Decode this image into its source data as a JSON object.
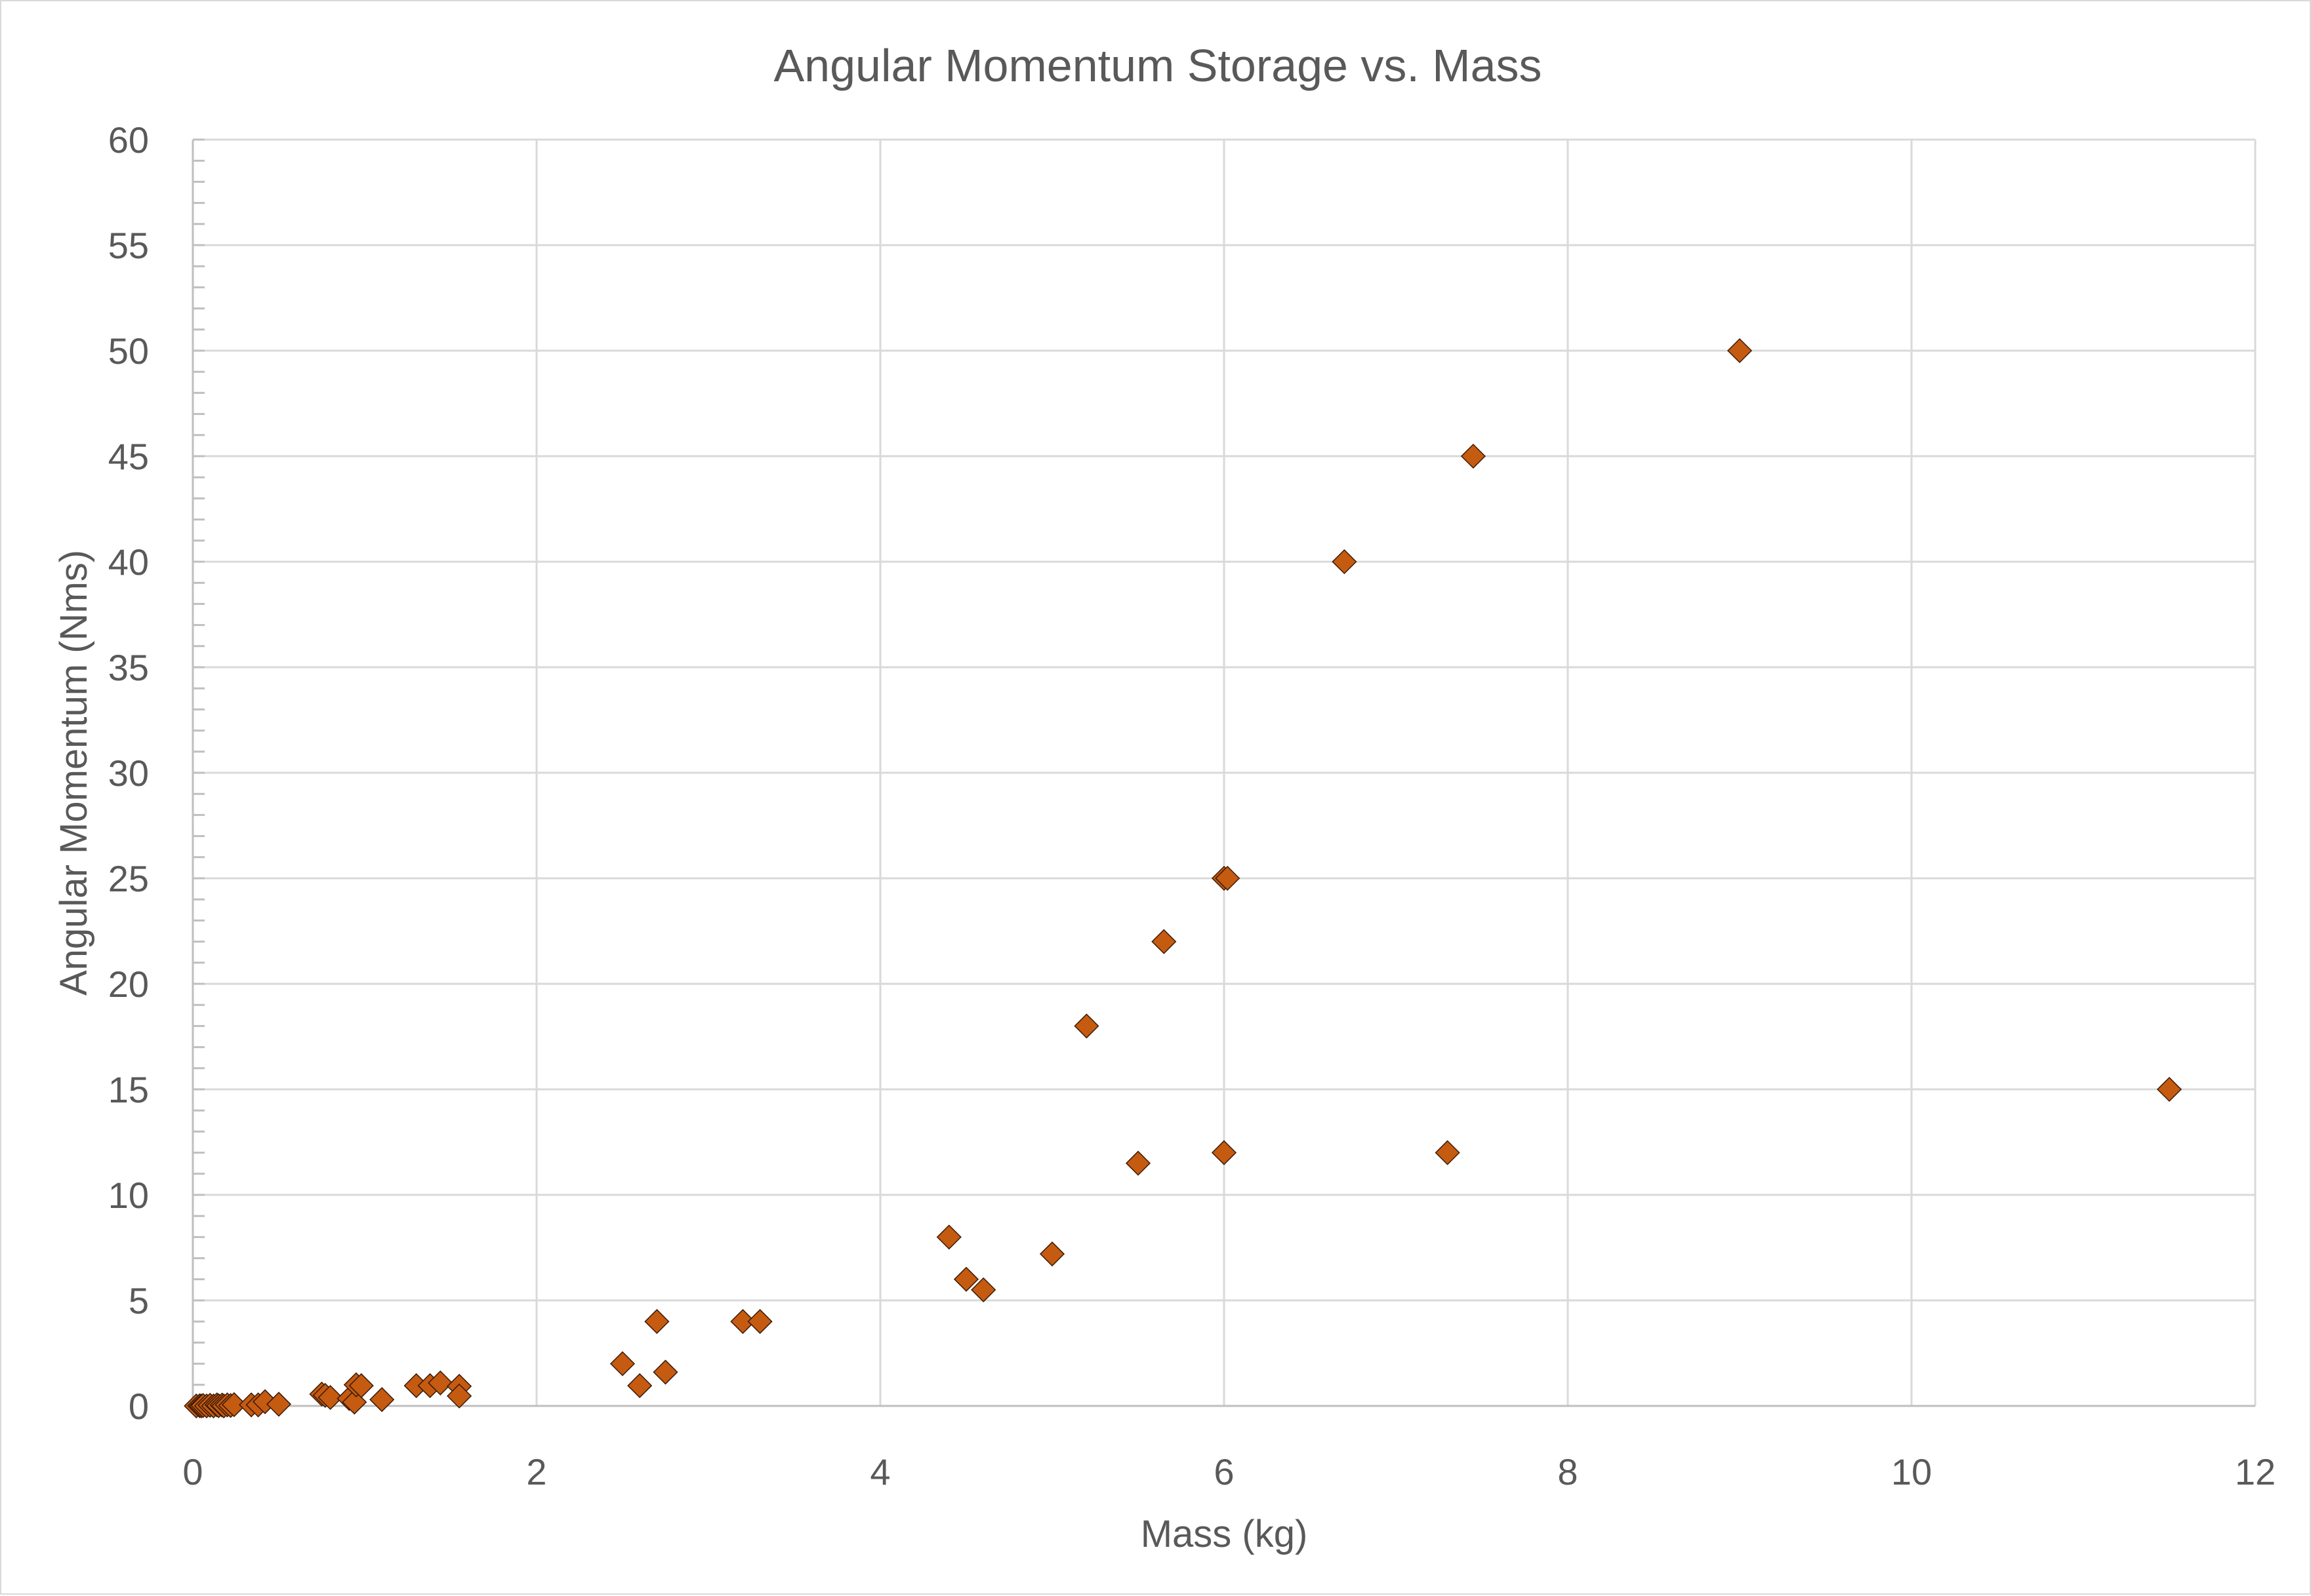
{
  "chart_data": {
    "type": "scatter",
    "title": "Angular Momentum Storage vs. Mass",
    "xlabel": "Mass (kg)",
    "ylabel": "Angular Momentum (Nms)",
    "xlim": [
      0,
      12
    ],
    "ylim": [
      0,
      60
    ],
    "x_ticks": [
      0,
      2,
      4,
      6,
      8,
      10,
      12
    ],
    "y_ticks": [
      0,
      5,
      10,
      15,
      20,
      25,
      30,
      35,
      40,
      45,
      50,
      55,
      60
    ],
    "y_minor_step": 1,
    "grid": true,
    "legend": null,
    "marker": "diamond",
    "marker_color": "#C55A11",
    "marker_edge_color": "#3A1A05",
    "series": [
      {
        "name": "Angular Momentum",
        "points": [
          [
            0.02,
            0.0
          ],
          [
            0.04,
            0.01
          ],
          [
            0.05,
            0.0
          ],
          [
            0.06,
            0.02
          ],
          [
            0.08,
            0.0
          ],
          [
            0.1,
            0.03
          ],
          [
            0.12,
            0.0
          ],
          [
            0.14,
            0.05
          ],
          [
            0.15,
            0.01
          ],
          [
            0.17,
            0.04
          ],
          [
            0.18,
            0.0
          ],
          [
            0.2,
            0.05
          ],
          [
            0.22,
            0.02
          ],
          [
            0.24,
            0.06
          ],
          [
            0.34,
            0.05
          ],
          [
            0.38,
            0.05
          ],
          [
            0.42,
            0.2
          ],
          [
            0.5,
            0.08
          ],
          [
            0.75,
            0.56
          ],
          [
            0.77,
            0.5
          ],
          [
            0.8,
            0.4
          ],
          [
            0.91,
            0.35
          ],
          [
            0.94,
            0.18
          ],
          [
            0.95,
            1.0
          ],
          [
            0.98,
            0.96
          ],
          [
            1.1,
            0.3
          ],
          [
            1.3,
            0.96
          ],
          [
            1.38,
            0.96
          ],
          [
            1.44,
            1.09
          ],
          [
            1.55,
            0.93
          ],
          [
            1.55,
            0.47
          ],
          [
            2.5,
            2.0
          ],
          [
            2.6,
            0.96
          ],
          [
            2.7,
            4.0
          ],
          [
            2.75,
            1.6
          ],
          [
            3.2,
            4.0
          ],
          [
            3.3,
            4.0
          ],
          [
            4.4,
            8.0
          ],
          [
            4.5,
            6.0
          ],
          [
            4.6,
            5.5
          ],
          [
            5.0,
            7.2
          ],
          [
            5.2,
            18.0
          ],
          [
            5.5,
            11.5
          ],
          [
            5.65,
            22.0
          ],
          [
            6.0,
            25.0
          ],
          [
            6.02,
            25.0
          ],
          [
            6.0,
            12.0
          ],
          [
            6.7,
            40.0
          ],
          [
            7.3,
            12.0
          ],
          [
            7.45,
            45.0
          ],
          [
            9.0,
            50.0
          ],
          [
            11.5,
            15.0
          ]
        ]
      }
    ]
  },
  "colors": {
    "text": "#595959",
    "gridline": "#d9d9d9",
    "axis_line": "#bfbfbf",
    "frame_border": "#d9d9d9",
    "background": "#ffffff"
  }
}
